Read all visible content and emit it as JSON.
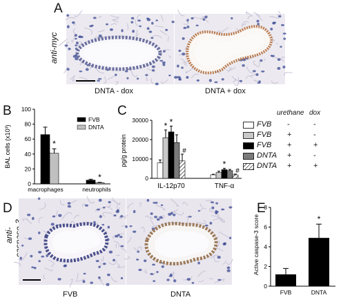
{
  "panel_a": {
    "letter": "A",
    "side_label": "anti-myc",
    "left_caption": "DNTA - dox",
    "right_caption": "DNTA + dox",
    "colors": {
      "tissue_bg": "#eceaf0",
      "nuclei": "#3b4a93",
      "stain": "#b97a4e"
    }
  },
  "panel_d": {
    "letter": "D",
    "side_label_1": "anti-",
    "side_label_2": "caspase 3",
    "left_caption": "FVB",
    "right_caption": "DNTA"
  },
  "panel_b": {
    "letter": "B"
  },
  "panel_c": {
    "letter": "C"
  },
  "panel_e": {
    "letter": "E"
  },
  "legend_c": {
    "header_urethane": "urethane",
    "header_dox": "dox",
    "rows": [
      {
        "name": "FVB",
        "urethane": "-",
        "dox": "-",
        "swatch": "white"
      },
      {
        "name": "FVB",
        "urethane": "+",
        "dox": "-",
        "swatch": "lightgray"
      },
      {
        "name": "FVB",
        "urethane": "+",
        "dox": "+",
        "swatch": "black"
      },
      {
        "name": "DNTA",
        "urethane": "+",
        "dox": "-",
        "swatch": "gray"
      },
      {
        "name": "DNTA",
        "urethane": "+",
        "dox": "+",
        "swatch": "hatch"
      }
    ]
  },
  "chart_data": [
    {
      "panel": "B",
      "type": "bar",
      "ylabel": "BAL cells (x10³)",
      "ylim": [
        0,
        100
      ],
      "yticks": [
        "0",
        "20",
        "40",
        "60",
        "80",
        "100"
      ],
      "categories": [
        "macrophages",
        "neutrophils"
      ],
      "series": [
        {
          "name": "FVB",
          "values": [
            66,
            5
          ],
          "errors": [
            10,
            1.2
          ],
          "color": "#000000"
        },
        {
          "name": "DNTA",
          "values": [
            41,
            1.5
          ],
          "errors": [
            6,
            0.6
          ],
          "color": "#c0c0c0"
        }
      ],
      "annotations": [
        "*",
        "*"
      ],
      "legend": "top-right"
    },
    {
      "panel": "C",
      "type": "bar",
      "ylabel": "pg/g protein",
      "ylim": [
        0,
        30000
      ],
      "yticks": [
        "0",
        "10000",
        "20000",
        "30000"
      ],
      "categories": [
        "IL-12p70",
        "TNF-α"
      ],
      "series": [
        {
          "name": "FVB urethane- dox-",
          "values": [
            8000,
            1800
          ],
          "errors": [
            1500,
            300
          ]
        },
        {
          "name": "FVB urethane+ dox-",
          "values": [
            21000,
            3000
          ],
          "errors": [
            4000,
            700
          ]
        },
        {
          "name": "FVB urethane+ dox+",
          "values": [
            24000,
            4500
          ],
          "errors": [
            3000,
            700
          ]
        },
        {
          "name": "DNTA urethane+ dox-",
          "values": [
            18500,
            4000
          ],
          "errors": [
            4000,
            600
          ]
        },
        {
          "name": "DNTA urethane+ dox+",
          "values": [
            9000,
            1800
          ],
          "errors": [
            3500,
            400
          ]
        }
      ],
      "annotations": [
        {
          "category": "IL-12p70",
          "series_index": 1,
          "text": "*"
        },
        {
          "category": "IL-12p70",
          "series_index": 2,
          "text": "*"
        },
        {
          "category": "IL-12p70",
          "series_index": 4,
          "text": "#"
        },
        {
          "category": "TNF-α",
          "series_index": 2,
          "text": "*"
        },
        {
          "category": "TNF-α",
          "series_index": 4,
          "text": "#"
        }
      ],
      "legend": "right"
    },
    {
      "panel": "E",
      "type": "bar",
      "ylabel": "Active caspase-3 score",
      "ylim": [
        0,
        8
      ],
      "yticks": [
        "0",
        "2",
        "4",
        "6",
        "8"
      ],
      "categories": [
        "FVB",
        "DNTA"
      ],
      "values": [
        1.2,
        4.9
      ],
      "errors": [
        0.6,
        1.4
      ],
      "annotations": [
        "",
        "*"
      ],
      "color": "#000000"
    }
  ]
}
